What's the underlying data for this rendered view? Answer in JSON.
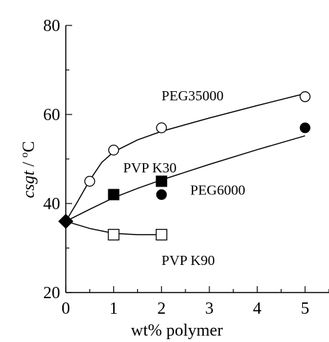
{
  "chart_data": {
    "type": "scatter",
    "title": "",
    "xlabel": "wt% polymer",
    "ylabel": {
      "italic": "csgt",
      "sep": " / ",
      "deg": "o",
      "unit": "C"
    },
    "xlim": [
      0,
      5.5
    ],
    "ylim": [
      20,
      80
    ],
    "xticks": [
      0,
      1,
      2,
      3,
      4,
      5
    ],
    "yticks": [
      20,
      40,
      60,
      80
    ],
    "grid": false,
    "legend": "none",
    "series": [
      {
        "name": "PEG35000",
        "marker": "open-circle",
        "points": [
          [
            0.5,
            45
          ],
          [
            1,
            52
          ],
          [
            2,
            57
          ],
          [
            5,
            64
          ]
        ],
        "curve": [
          [
            0,
            36
          ],
          [
            0.25,
            40.5
          ],
          [
            0.5,
            45.2
          ],
          [
            0.75,
            49.2
          ],
          [
            1,
            51.6
          ],
          [
            1.5,
            54.3
          ],
          [
            2,
            56.2
          ],
          [
            3,
            59.2
          ],
          [
            4,
            62
          ],
          [
            5,
            64.7
          ]
        ]
      },
      {
        "name": "PVP K30",
        "marker": "filled-square",
        "points": [
          [
            1,
            42
          ],
          [
            2,
            45
          ]
        ],
        "curve": null
      },
      {
        "name": "PEG6000",
        "marker": "filled-circle",
        "points": [
          [
            2,
            42
          ],
          [
            5,
            57
          ]
        ],
        "curve": [
          [
            0,
            36
          ],
          [
            0.5,
            38.7
          ],
          [
            1,
            41.3
          ],
          [
            1.5,
            43.4
          ],
          [
            2,
            45.3
          ],
          [
            3,
            48.8
          ],
          [
            4,
            52.1
          ],
          [
            5,
            55.2
          ]
        ]
      },
      {
        "name": "PVP K90",
        "marker": "open-square",
        "points": [
          [
            1,
            33
          ],
          [
            2,
            33
          ]
        ],
        "curve": [
          [
            0,
            36
          ],
          [
            0.5,
            34.4
          ],
          [
            1,
            33.3
          ],
          [
            1.5,
            33
          ],
          [
            2,
            33
          ]
        ]
      },
      {
        "name": "",
        "marker": "filled-diamond",
        "points": [
          [
            0,
            36
          ]
        ],
        "curve": null
      }
    ]
  }
}
